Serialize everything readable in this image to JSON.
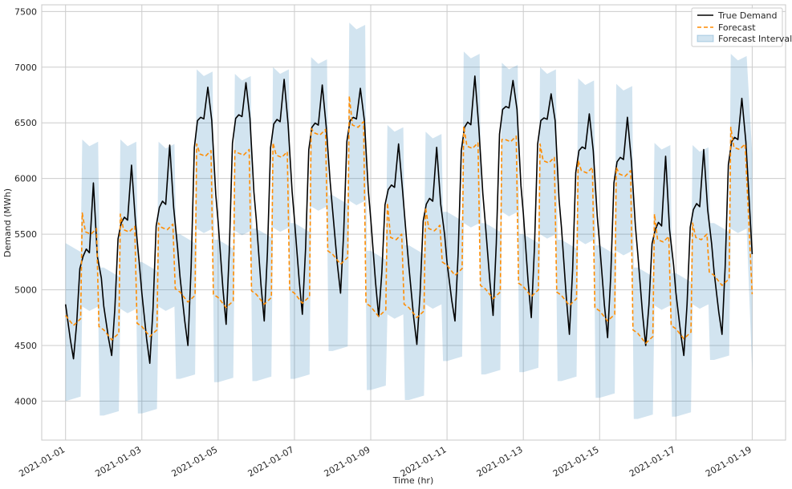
{
  "chart_data": {
    "type": "line",
    "title": "",
    "xlabel": "Time (hr)",
    "ylabel": "Demand (MWh)",
    "x_range": [
      "2020-12-31T09:00",
      "2021-01-19T21:00"
    ],
    "ylim": [
      3650,
      7560
    ],
    "yticks": [
      4000,
      4500,
      5000,
      5500,
      6000,
      6500,
      7000,
      7500
    ],
    "xticks": [
      "2021-01-01",
      "2021-01-03",
      "2021-01-05",
      "2021-01-07",
      "2021-01-09",
      "2021-01-11",
      "2021-01-13",
      "2021-01-15",
      "2021-01-17",
      "2021-01-19"
    ],
    "grid": true,
    "legend_position": "top-right",
    "series_true": {
      "name": "True Demand",
      "color": "#000000",
      "daily": [
        {
          "date": "2021-01-01",
          "min": 4380,
          "peak": 5960,
          "shoulder": 5300,
          "start": 4870
        },
        {
          "date": "2021-01-02",
          "min": 4410,
          "peak": 6120,
          "shoulder": 5600
        },
        {
          "date": "2021-01-03",
          "min": 4340,
          "peak": 6300,
          "shoulder": 5740
        },
        {
          "date": "2021-01-04",
          "min": 4500,
          "peak": 6820,
          "shoulder": 6520
        },
        {
          "date": "2021-01-05",
          "min": 4690,
          "peak": 6860,
          "shoulder": 6540
        },
        {
          "date": "2021-01-06",
          "min": 4720,
          "peak": 6890,
          "shoulder": 6490
        },
        {
          "date": "2021-01-07",
          "min": 4780,
          "peak": 6840,
          "shoulder": 6460
        },
        {
          "date": "2021-01-08",
          "min": 4970,
          "peak": 6810,
          "shoulder": 6520
        },
        {
          "date": "2021-01-09",
          "min": 4760,
          "peak": 6310,
          "shoulder": 5900
        },
        {
          "date": "2021-01-10",
          "min": 4510,
          "peak": 6280,
          "shoulder": 5770
        },
        {
          "date": "2021-01-11",
          "min": 4720,
          "peak": 6920,
          "shoulder": 6460
        },
        {
          "date": "2021-01-12",
          "min": 4770,
          "peak": 6880,
          "shoulder": 6620
        },
        {
          "date": "2021-01-13",
          "min": 4750,
          "peak": 6760,
          "shoulder": 6520
        },
        {
          "date": "2021-01-14",
          "min": 4600,
          "peak": 6580,
          "shoulder": 6250
        },
        {
          "date": "2021-01-15",
          "min": 4570,
          "peak": 6550,
          "shoulder": 6150
        },
        {
          "date": "2021-01-16",
          "min": 4500,
          "peak": 6200,
          "shoulder": 5540
        },
        {
          "date": "2021-01-17",
          "min": 4410,
          "peak": 6260,
          "shoulder": 5720
        },
        {
          "date": "2021-01-18",
          "min": 4600,
          "peak": 6720,
          "shoulder": 6330,
          "end": 5320
        }
      ]
    },
    "series_forecast": {
      "name": "Forecast",
      "color": "#ff8c00",
      "style": "dashed",
      "daily": [
        {
          "date": "2021-01-01",
          "night": 4680,
          "day": 5520,
          "peak": 5690
        },
        {
          "date": "2021-01-02",
          "night": 4550,
          "day": 5540,
          "peak": 5680
        },
        {
          "date": "2021-01-03",
          "night": 4580,
          "day": 5560,
          "peak": 5600
        },
        {
          "date": "2021-01-04",
          "night": 4890,
          "day": 6220,
          "peak": 6310
        },
        {
          "date": "2021-01-05",
          "night": 4840,
          "day": 6230,
          "peak": 6250
        },
        {
          "date": "2021-01-06",
          "night": 4870,
          "day": 6210,
          "peak": 6320
        },
        {
          "date": "2021-01-07",
          "night": 4880,
          "day": 6410,
          "peak": 6450
        },
        {
          "date": "2021-01-08",
          "night": 5230,
          "day": 6480,
          "peak": 6740
        },
        {
          "date": "2021-01-09",
          "night": 4760,
          "day": 5470,
          "peak": 5780
        },
        {
          "date": "2021-01-10",
          "night": 4750,
          "day": 5550,
          "peak": 5740
        },
        {
          "date": "2021-01-11",
          "night": 5130,
          "day": 6290,
          "peak": 6470
        },
        {
          "date": "2021-01-12",
          "night": 4920,
          "day": 6350,
          "peak": 6350
        },
        {
          "date": "2021-01-13",
          "night": 4940,
          "day": 6160,
          "peak": 6310
        },
        {
          "date": "2021-01-14",
          "night": 4860,
          "day": 6070,
          "peak": 6160
        },
        {
          "date": "2021-01-15",
          "night": 4720,
          "day": 6040,
          "peak": 6100
        },
        {
          "date": "2021-01-16",
          "night": 4520,
          "day": 5450,
          "peak": 5680
        },
        {
          "date": "2021-01-17",
          "night": 4560,
          "day": 5470,
          "peak": 5600
        },
        {
          "date": "2021-01-18",
          "night": 5040,
          "day": 6280,
          "peak": 6460,
          "end": 4960
        }
      ]
    },
    "series_interval": {
      "name": "Forecast Interval",
      "color": "#1f77b4",
      "opacity": 0.2,
      "daily": [
        {
          "date": "2021-01-01",
          "night_low": 4000,
          "night_high": 5420,
          "day_low": 4850,
          "day_high": 6350
        },
        {
          "date": "2021-01-02",
          "night_low": 3870,
          "night_high": 5200,
          "day_low": 4830,
          "day_high": 6350
        },
        {
          "date": "2021-01-03",
          "night_low": 3890,
          "night_high": 5250,
          "day_low": 4850,
          "day_high": 6330
        },
        {
          "date": "2021-01-04",
          "night_low": 4200,
          "night_high": 5500,
          "day_low": 5550,
          "day_high": 6980
        },
        {
          "date": "2021-01-05",
          "night_low": 4170,
          "night_high": 5450,
          "day_low": 5530,
          "day_high": 6940
        },
        {
          "date": "2021-01-06",
          "night_low": 4180,
          "night_high": 5550,
          "day_low": 5560,
          "day_high": 7000
        },
        {
          "date": "2021-01-07",
          "night_low": 4200,
          "night_high": 5600,
          "day_low": 5750,
          "day_high": 7090
        },
        {
          "date": "2021-01-08",
          "night_low": 4450,
          "night_high": 5850,
          "day_low": 5800,
          "day_high": 7400
        },
        {
          "date": "2021-01-09",
          "night_low": 4100,
          "night_high": 5350,
          "day_low": 4780,
          "day_high": 6480
        },
        {
          "date": "2021-01-10",
          "night_low": 4010,
          "night_high": 5400,
          "day_low": 4870,
          "day_high": 6420
        },
        {
          "date": "2021-01-11",
          "night_low": 4360,
          "night_high": 5700,
          "day_low": 5600,
          "day_high": 7140
        },
        {
          "date": "2021-01-12",
          "night_low": 4240,
          "night_high": 5600,
          "day_low": 5700,
          "day_high": 7040
        },
        {
          "date": "2021-01-13",
          "night_low": 4260,
          "night_high": 5500,
          "day_low": 5500,
          "day_high": 7000
        },
        {
          "date": "2021-01-14",
          "night_low": 4180,
          "night_high": 5450,
          "day_low": 5450,
          "day_high": 6900
        },
        {
          "date": "2021-01-15",
          "night_low": 4030,
          "night_high": 5400,
          "day_low": 5350,
          "day_high": 6850
        },
        {
          "date": "2021-01-16",
          "night_low": 3840,
          "night_high": 5200,
          "day_low": 4860,
          "day_high": 6320
        },
        {
          "date": "2021-01-17",
          "night_low": 3860,
          "night_high": 5150,
          "day_low": 4870,
          "day_high": 6300
        },
        {
          "date": "2021-01-18",
          "night_low": 4370,
          "night_high": 5600,
          "day_low": 5550,
          "day_high": 7120
        }
      ]
    }
  }
}
